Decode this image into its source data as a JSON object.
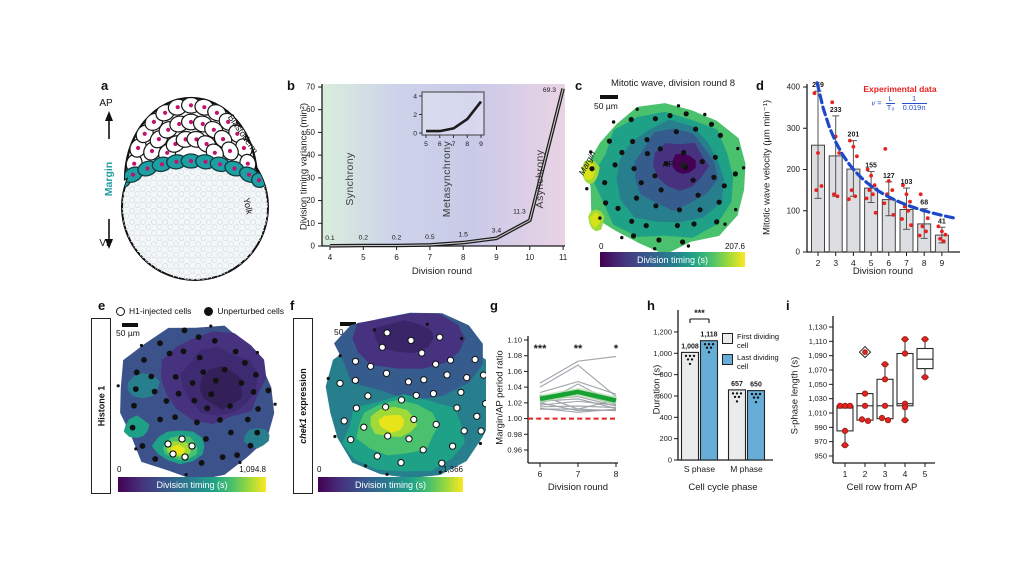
{
  "letters": {
    "a": "a",
    "b": "b",
    "c": "c",
    "d": "d",
    "e": "e",
    "f": "f",
    "g": "g",
    "h": "h",
    "i": "i"
  },
  "panel_a": {
    "ap": "AP",
    "vp": "VP",
    "margin": "Margin",
    "blastoderm": "Blastoderm",
    "yolk": "Yolk"
  },
  "chart_data": [
    {
      "panel": "b",
      "type": "line",
      "xlabel": "Division round",
      "ylabel": "Division timing variance (min²)",
      "x": [
        4,
        5,
        6,
        7,
        8,
        9,
        10,
        11
      ],
      "values": [
        0.1,
        0.2,
        0.2,
        0.5,
        1.5,
        3.4,
        11.3,
        69.3
      ],
      "point_labels": [
        "0.1",
        "0.2",
        "0.2",
        "0.5",
        "1.5",
        "3.4",
        "11.3",
        "69.3"
      ],
      "ylim": [
        0,
        70
      ],
      "yticks": [
        0,
        10,
        20,
        30,
        40,
        50,
        60,
        70
      ],
      "regions": [
        "Synchrony",
        "Metasynchrony",
        "Asynchrony"
      ],
      "inset": {
        "x": [
          5,
          6,
          7,
          8,
          9
        ],
        "values": [
          0.2,
          0.2,
          0.5,
          1.5,
          3.4
        ],
        "xticks": [
          5,
          6,
          7,
          8,
          9
        ],
        "yticks": [
          0,
          2,
          4
        ],
        "ylim": [
          0,
          4
        ]
      }
    },
    {
      "panel": "c",
      "type": "heatmap",
      "title": "Mitotic wave, division round 8",
      "scale_bar": "50 µm",
      "margin_label": "Margin",
      "ap_label": "AP",
      "colorbar": {
        "min": "0",
        "max": "207.6",
        "label": "Division timing (s)"
      }
    },
    {
      "panel": "d",
      "type": "bar",
      "xlabel": "Division round",
      "ylabel": "Mitotic wave velocity (µm min⁻¹)",
      "categories": [
        2,
        3,
        4,
        5,
        6,
        7,
        8,
        9
      ],
      "values": [
        259,
        233,
        201,
        155,
        127,
        103,
        68,
        41
      ],
      "value_labels": [
        "259",
        "233",
        "201",
        "155",
        "127",
        "103",
        "68",
        "41"
      ],
      "error_lo": [
        130,
        135,
        135,
        120,
        88,
        55,
        33,
        22
      ],
      "error_hi": [
        390,
        330,
        270,
        195,
        170,
        155,
        105,
        60
      ],
      "scatter": [
        [
          385,
          240,
          160,
          150
        ],
        [
          363,
          280,
          240,
          140,
          135
        ],
        [
          270,
          255,
          232,
          150,
          135,
          128
        ],
        [
          200,
          185,
          162,
          150,
          140,
          130,
          95
        ],
        [
          250,
          172,
          150,
          140,
          130,
          118,
          90
        ],
        [
          162,
          140,
          122,
          110,
          100,
          80,
          65
        ],
        [
          140,
          100,
          82,
          62,
          50,
          40
        ],
        [
          62,
          50,
          42,
          32,
          26
        ]
      ],
      "ylim": [
        0,
        400
      ],
      "yticks": [
        0,
        100,
        200,
        300,
        400
      ],
      "legend": {
        "experimental": "Experimental data",
        "formula": {
          "var": "v",
          "eq": "=",
          "num1": "L",
          "den1": "T₀",
          "num2": "1",
          "den2": "0.019n"
        }
      },
      "model_curve": {
        "form": "v = 800/n"
      }
    },
    {
      "panel": "e",
      "type": "heatmap",
      "side_label": "Histone 1",
      "scale_bar": "50 µm",
      "legend": [
        {
          "marker": "open-circle",
          "label": "H1-injected cells"
        },
        {
          "marker": "filled-circle",
          "label": "Unperturbed cells"
        }
      ],
      "n_unperturbed_dots": 46,
      "n_injected_dots": 5,
      "colorbar": {
        "min": "0",
        "max": "1,094.8",
        "label": "Division timing (s)"
      }
    },
    {
      "panel": "f",
      "type": "heatmap",
      "side_label_italic": "chek1",
      "side_label_rest": " expression",
      "scale_bar": "50 µm",
      "n_injected_dots": 42,
      "colorbar": {
        "min": "0",
        "max": "1,366",
        "label": "Division timing (s)"
      }
    },
    {
      "panel": "g",
      "type": "line",
      "xlabel": "Division round",
      "ylabel": "Margin/AP period ratio",
      "x": [
        6,
        7,
        8
      ],
      "mean": [
        1.025,
        1.034,
        1.023
      ],
      "baseline": 1.0,
      "individuals": [
        [
          1.045,
          1.073,
          1.079
        ],
        [
          1.04,
          1.068,
          1.028
        ],
        [
          1.033,
          1.047,
          1.031
        ],
        [
          1.018,
          1.044,
          1.018
        ],
        [
          1.025,
          1.028,
          1.016
        ],
        [
          1.022,
          1.025,
          1.013
        ],
        [
          1.017,
          1.022,
          1.017
        ],
        [
          1.015,
          1.016,
          1.014
        ],
        [
          1.012,
          1.012,
          1.01
        ],
        [
          1.03,
          1.012,
          1.024
        ],
        [
          1.02,
          1.01,
          1.011
        ],
        [
          1.013,
          1.008,
          1.012
        ],
        [
          1.028,
          1.032,
          1.018
        ]
      ],
      "significance": [
        "***",
        "**",
        "*"
      ],
      "ylim": [
        0.96,
        1.1
      ],
      "ytick_labels": [
        "0.96",
        "0.98",
        "1.00",
        "1.02",
        "1.04",
        "1.06",
        "1.08",
        "1.10"
      ]
    },
    {
      "panel": "h",
      "type": "bar",
      "xlabel": "Cell cycle phase",
      "ylabel": "Duration (s)",
      "categories": [
        "S phase",
        "M phase"
      ],
      "series": [
        {
          "name": "First dividing cell",
          "values": [
            1008,
            657
          ]
        },
        {
          "name": "Last dividing cell",
          "values": [
            1118,
            650
          ]
        }
      ],
      "value_labels": [
        [
          "1,008",
          "657"
        ],
        [
          "1,118",
          "650"
        ]
      ],
      "significance": "***",
      "ylim": [
        0,
        1200
      ],
      "ytick_labels": [
        "0",
        "200",
        "400",
        "600",
        "800",
        "1,000",
        "1,200"
      ]
    },
    {
      "panel": "i",
      "type": "box",
      "xlabel": "Cell row from AP",
      "ylabel": "S-phase length (s)",
      "categories": [
        1,
        2,
        3,
        4,
        5
      ],
      "ylim": [
        950,
        1130
      ],
      "ytick_labels": [
        "950",
        "970",
        "990",
        "1,010",
        "1,030",
        "1,050",
        "1,070",
        "1,090",
        "1,110",
        "1,130"
      ],
      "boxes": [
        {
          "q1": 985,
          "median": 1017,
          "q3": 1020,
          "whisker_low": 965,
          "whisker_high": null,
          "points": [
            1020,
            1020,
            1020,
            985,
            965
          ],
          "outlier": null
        },
        {
          "q1": 1000,
          "median": 1020,
          "q3": 1037,
          "whisker_low": null,
          "whisker_high": null,
          "points": [
            1037,
            1020,
            1001,
            999
          ],
          "outlier": 1095
        },
        {
          "q1": 1002,
          "median": 1020,
          "q3": 1057,
          "whisker_low": null,
          "whisker_high": 1078,
          "points": [
            1078,
            1057,
            1020,
            1003,
            1000
          ],
          "outlier": null
        },
        {
          "q1": 1020,
          "median": 1023,
          "q3": 1093,
          "whisker_low": 1000,
          "whisker_high": 1113,
          "points": [
            1113,
            1093,
            1023,
            1018,
            1000
          ],
          "outlier": null
        },
        {
          "q1": 1072,
          "median": 1085,
          "q3": 1100,
          "whisker_low": 1060,
          "whisker_high": 1113,
          "points": [
            1113,
            1060
          ],
          "outlier": null
        }
      ]
    }
  ],
  "colors": {
    "teal": "#1d9fa4",
    "magenta": "#c0136e",
    "red": "#e8211f",
    "blue_model": "#1d49c8",
    "green_mean": "#16a232",
    "red_dash": "#e02521",
    "bar_gray": "#dcdee1",
    "bar_blue": "#66aed7",
    "viridis_low": "#440154",
    "viridis_high": "#fde725"
  }
}
